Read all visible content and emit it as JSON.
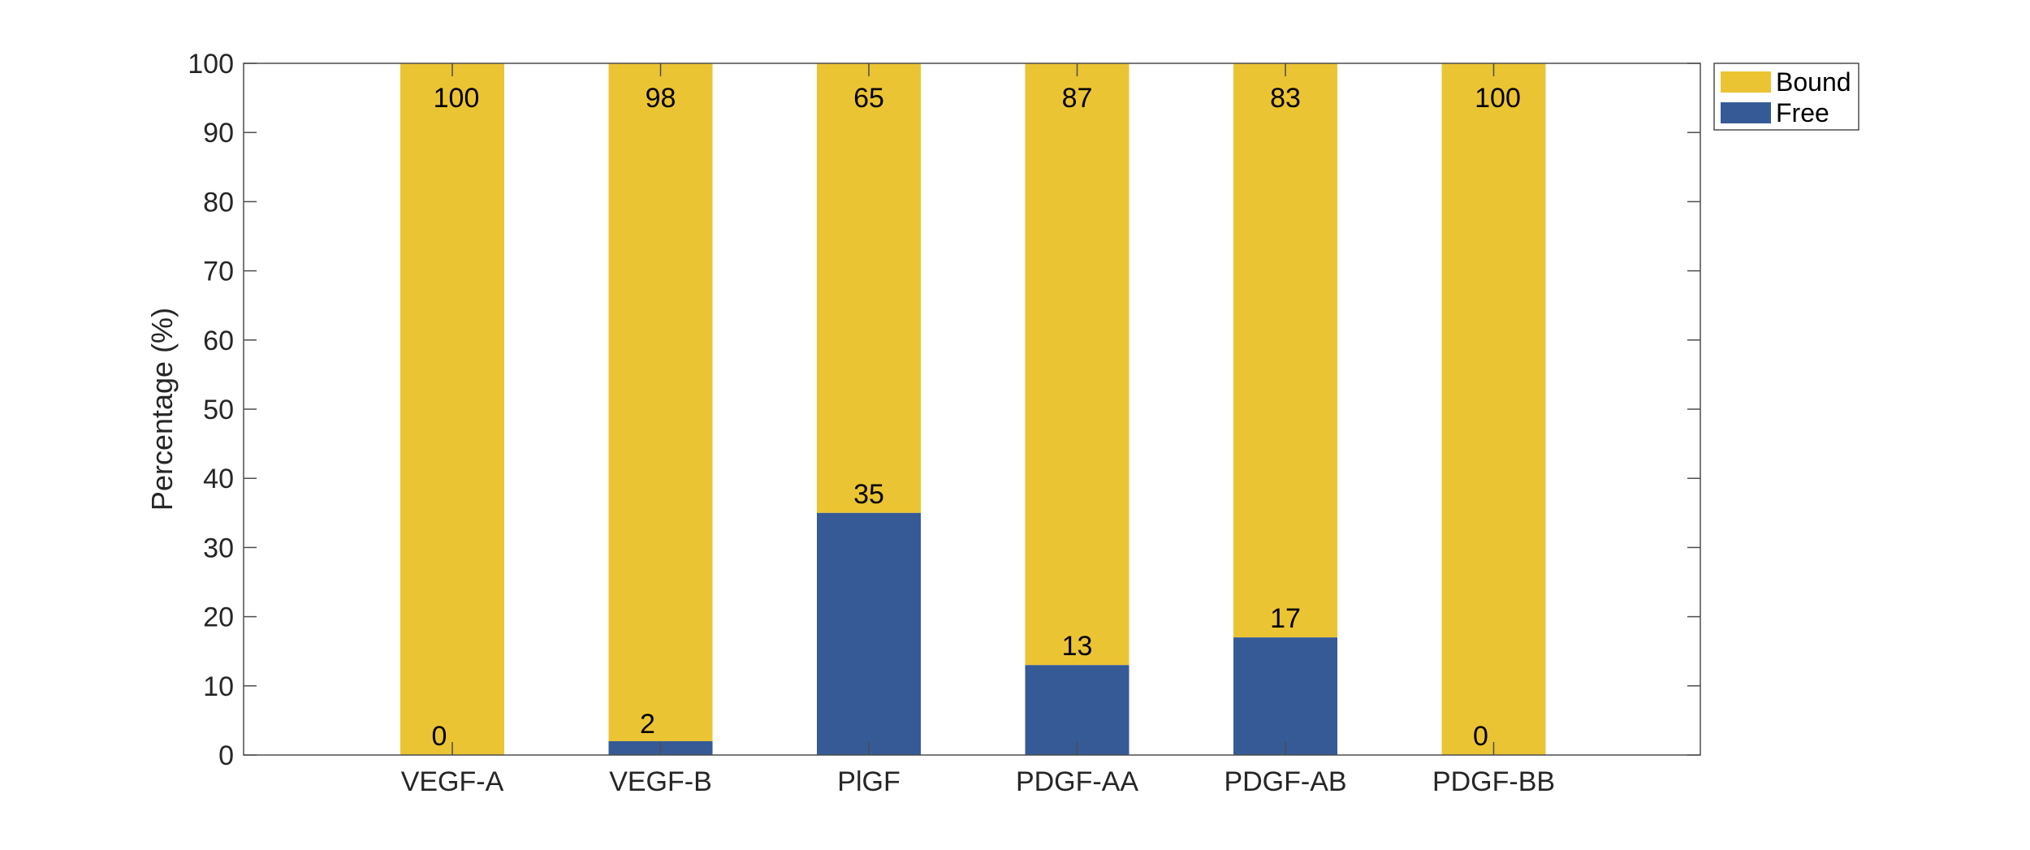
{
  "chart_data": {
    "type": "bar",
    "stacked": true,
    "title": "",
    "xlabel": "",
    "ylabel": "Percentage (%)",
    "ylim": [
      0,
      100
    ],
    "yticks": [
      0,
      10,
      20,
      30,
      40,
      50,
      60,
      70,
      80,
      90,
      100
    ],
    "categories": [
      "VEGF-A",
      "VEGF-B",
      "PlGF",
      "PDGF-AA",
      "PDGF-AB",
      "PDGF-BB"
    ],
    "series": [
      {
        "name": "Free",
        "color": "#365A96",
        "values": [
          0,
          2,
          35,
          13,
          17,
          0
        ]
      },
      {
        "name": "Bound",
        "color": "#EBC433",
        "values": [
          100,
          98,
          65,
          87,
          83,
          100
        ]
      }
    ],
    "legend": {
      "placement": "outside-top-right",
      "order": [
        "Bound",
        "Free"
      ]
    },
    "grid": false
  }
}
